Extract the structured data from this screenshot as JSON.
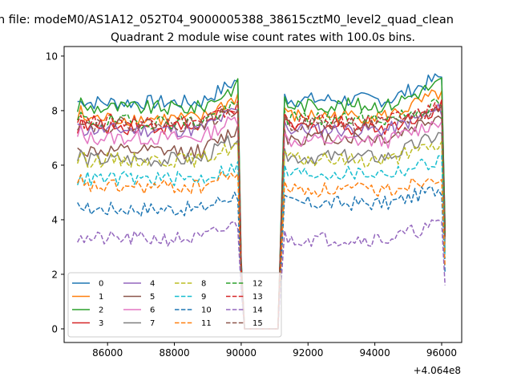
{
  "figure": {
    "suptitle": "n file: modeM0/AS1A12_052T04_9000005388_38615cztM0_level2_quad_clean",
    "title": "Quadrant 2 module wise count rates with 100.0s bins."
  },
  "chart_data": {
    "type": "line",
    "title": "Quadrant 2 module wise count rates with 100.0s bins.",
    "xlabel": "",
    "ylabel": "",
    "x_offset_label": "+4.064e8",
    "xlim": [
      84700,
      96600
    ],
    "ylim": [
      -0.5,
      10.35
    ],
    "xticks": [
      86000,
      88000,
      90000,
      92000,
      94000,
      96000
    ],
    "xtick_labels": [
      "86000",
      "88000",
      "90000",
      "92000",
      "94000",
      "96000"
    ],
    "yticks": [
      0,
      2,
      4,
      6,
      8,
      10
    ],
    "ytick_labels": [
      "0",
      "2",
      "4",
      "6",
      "8",
      "10"
    ],
    "grid": false,
    "legend": {
      "placement": "lower-left",
      "columns": 5
    },
    "shape": {
      "bin": 100,
      "segments": [
        {
          "x_start": 85100,
          "x_end": 90000
        },
        {
          "x_start": 91300,
          "x_end": 96100
        }
      ],
      "gap_x": [
        90100,
        90300,
        90500,
        90700,
        90900,
        91100
      ],
      "gap_value": 0
    },
    "series": [
      {
        "name": "0",
        "color": "#1f77b4",
        "dash": "solid",
        "level1": 8.3,
        "level2": 8.4,
        "rise": 0.9
      },
      {
        "name": "1",
        "color": "#ff7f0e",
        "dash": "solid",
        "level1": 7.7,
        "level2": 7.8,
        "rise": 0.9
      },
      {
        "name": "2",
        "color": "#2ca02c",
        "dash": "solid",
        "level1": 8.1,
        "level2": 8.2,
        "rise": 0.9
      },
      {
        "name": "3",
        "color": "#d62728",
        "dash": "solid",
        "level1": 7.4,
        "level2": 7.4,
        "rise": 0.8
      },
      {
        "name": "4",
        "color": "#9467bd",
        "dash": "solid",
        "level1": 7.3,
        "level2": 7.3,
        "rise": 0.8
      },
      {
        "name": "5",
        "color": "#8c564b",
        "dash": "solid",
        "level1": 6.5,
        "level2": 7.0,
        "rise": 0.9
      },
      {
        "name": "6",
        "color": "#e377c2",
        "dash": "solid",
        "level1": 7.0,
        "level2": 6.9,
        "rise": 0.8
      },
      {
        "name": "7",
        "color": "#7f7f7f",
        "dash": "solid",
        "level1": 6.2,
        "level2": 6.3,
        "rise": 0.9
      },
      {
        "name": "8",
        "color": "#bcbd22",
        "dash": "dashed",
        "level1": 6.2,
        "level2": 6.2,
        "rise": 0.6
      },
      {
        "name": "9",
        "color": "#17becf",
        "dash": "dashed",
        "level1": 5.5,
        "level2": 5.7,
        "rise": 0.5
      },
      {
        "name": "10",
        "color": "#1f77b4",
        "dash": "dashed",
        "level1": 4.4,
        "level2": 4.6,
        "rise": 0.6
      },
      {
        "name": "11",
        "color": "#ff7f0e",
        "dash": "dashed",
        "level1": 5.2,
        "level2": 5.1,
        "rise": 0.6
      },
      {
        "name": "12",
        "color": "#2ca02c",
        "dash": "dashed",
        "level1": 7.6,
        "level2": 7.7,
        "rise": 0.6
      },
      {
        "name": "13",
        "color": "#d62728",
        "dash": "dashed",
        "level1": 7.6,
        "level2": 7.6,
        "rise": 0.6
      },
      {
        "name": "14",
        "color": "#9467bd",
        "dash": "dashed",
        "level1": 3.3,
        "level2": 3.3,
        "rise": 0.6
      },
      {
        "name": "15",
        "color": "#8c564b",
        "dash": "dashed",
        "level1": 7.5,
        "level2": 7.5,
        "rise": 0.6
      }
    ]
  }
}
